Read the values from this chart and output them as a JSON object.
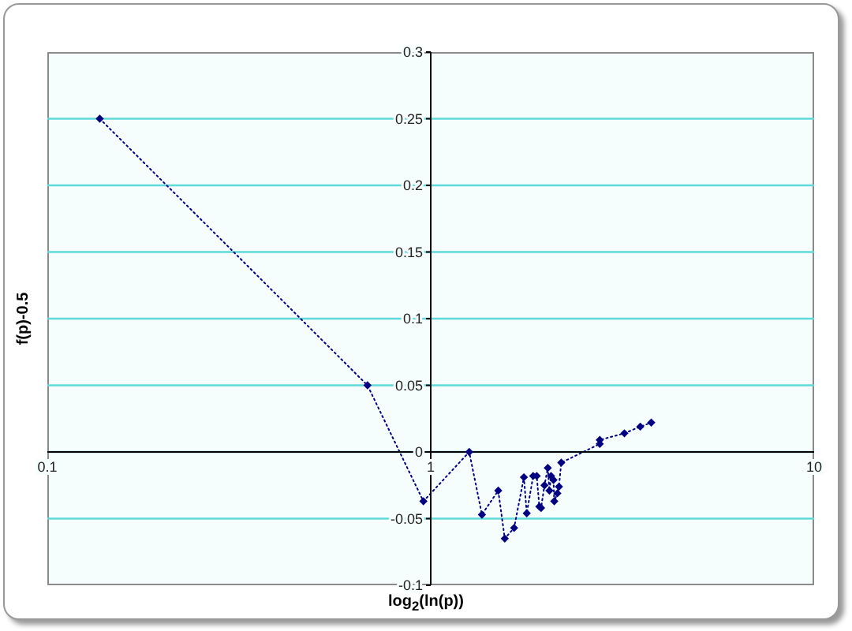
{
  "chart_data": {
    "type": "line",
    "xlabel": "log$_{2}$(ln(p))",
    "ylabel": "f(p)-0.5",
    "x": [
      0.137,
      0.684,
      0.957,
      1.26,
      1.36,
      1.5,
      1.56,
      1.65,
      1.75,
      1.78,
      1.85,
      1.89,
      1.92,
      1.94,
      1.98,
      2.02,
      2.04,
      2.06,
      2.09,
      2.1,
      2.14,
      2.16,
      2.19,
      2.76,
      2.76,
      3.2,
      3.52,
      3.76
    ],
    "values": [
      0.25,
      0.05,
      -0.037,
      0,
      -0.047,
      -0.029,
      -0.065,
      -0.057,
      -0.019,
      -0.046,
      -0.018,
      -0.018,
      -0.041,
      -0.042,
      -0.025,
      -0.012,
      -0.029,
      -0.018,
      -0.021,
      -0.037,
      -0.031,
      -0.026,
      -0.008,
      0.006,
      0.009,
      0.014,
      0.019,
      0.022
    ],
    "color": "#000080",
    "xlim": [
      0.1,
      10
    ],
    "xticks": [
      0.1,
      1,
      10
    ],
    "ylim": [
      -0.1,
      0.3
    ],
    "yticks": [
      -0.1,
      -0.05,
      0,
      0.05,
      0.1,
      0.15,
      0.2,
      0.25,
      0.3
    ],
    "log": "x",
    "grid": "y",
    "marker": "diamond",
    "line_style": "dotted"
  }
}
